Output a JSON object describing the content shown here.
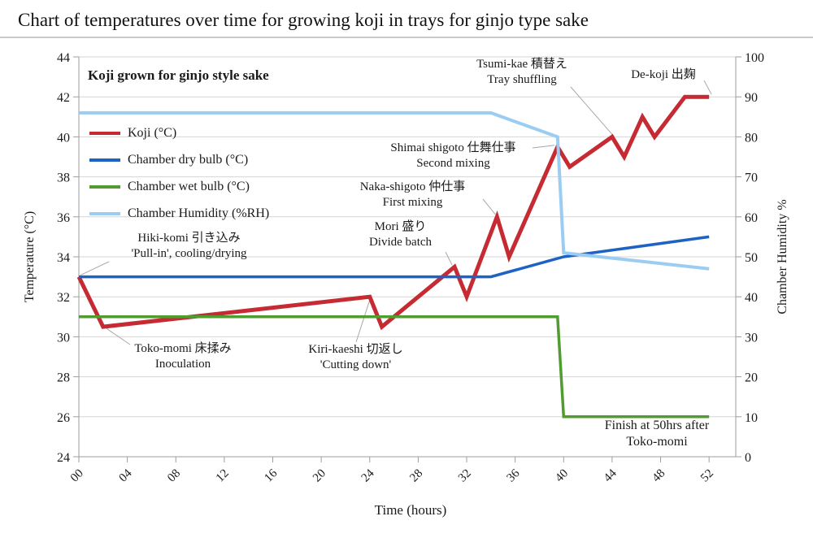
{
  "page": {
    "title": "Chart of temperatures over time for growing koji in trays for ginjo type sake"
  },
  "chart_data": {
    "type": "line",
    "title": "Koji grown for ginjo style sake",
    "xlabel": "Time (hours)",
    "ylabel_left": "Temperature (°C)",
    "ylabel_right": "Chamber Humidity %",
    "grid": "horizontal",
    "legend_position": "inside-top-left",
    "x_axis": {
      "min": 0,
      "max": 54.2,
      "tick_step": 4,
      "last_tick": 52,
      "tick_labels": [
        "00",
        "04",
        "08",
        "12",
        "16",
        "20",
        "24",
        "28",
        "32",
        "36",
        "40",
        "44",
        "48",
        "52"
      ]
    },
    "y_axis_left": {
      "min": 24,
      "max": 44,
      "tick_step": 2
    },
    "y_axis_right": {
      "min": 0,
      "max": 100,
      "tick_step": 10
    },
    "series": [
      {
        "name": "Koji (°C)",
        "axis": "left",
        "color": "#c62a32",
        "points": [
          [
            0,
            33
          ],
          [
            2,
            30.5
          ],
          [
            24,
            32
          ],
          [
            25,
            30.5
          ],
          [
            31,
            33.5
          ],
          [
            32,
            32
          ],
          [
            34.5,
            36
          ],
          [
            35.5,
            34
          ],
          [
            39.5,
            39.5
          ],
          [
            40.5,
            38.5
          ],
          [
            44,
            40
          ],
          [
            45,
            39
          ],
          [
            46.5,
            41
          ],
          [
            47.5,
            40
          ],
          [
            50,
            42
          ],
          [
            52,
            42
          ]
        ]
      },
      {
        "name": "Chamber dry bulb (°C)",
        "axis": "left",
        "color": "#1e63c4",
        "points": [
          [
            0,
            33
          ],
          [
            34,
            33
          ],
          [
            40,
            34
          ],
          [
            52,
            35
          ]
        ]
      },
      {
        "name": "Chamber wet bulb (°C)",
        "axis": "left",
        "color": "#519c30",
        "points": [
          [
            0,
            31
          ],
          [
            39.5,
            31
          ],
          [
            40,
            26
          ],
          [
            52,
            26
          ]
        ]
      },
      {
        "name": "Chamber Humidity (%RH)",
        "axis": "right",
        "color": "#9bcdf2",
        "points": [
          [
            0,
            86
          ],
          [
            34,
            86
          ],
          [
            39.5,
            80
          ],
          [
            40,
            51
          ],
          [
            52,
            47
          ]
        ]
      }
    ],
    "annotations": [
      {
        "id": "hiki_komi",
        "line1": "Hiki-komi  引き込み",
        "line2": "'Pull-in', cooling/drying",
        "points_to": {
          "hour": 0,
          "value": 33
        }
      },
      {
        "id": "toko_momi",
        "line1": "Toko-momi  床揉み",
        "line2": "Inoculation",
        "points_to": {
          "hour": 2,
          "value": 30.5
        }
      },
      {
        "id": "kiri_kaeshi",
        "line1": "Kiri-kaeshi 切返し",
        "line2": "'Cutting down'",
        "points_to": {
          "hour": 24,
          "value": 32
        }
      },
      {
        "id": "mori",
        "line1": "Mori  盛り",
        "line2": "Divide batch",
        "points_to": {
          "hour": 31,
          "value": 33.5
        }
      },
      {
        "id": "naka_shigoto",
        "line1": "Naka-shigoto  仲仕事",
        "line2": "First mixing",
        "points_to": {
          "hour": 34.5,
          "value": 36
        }
      },
      {
        "id": "shimai_shigoto",
        "line1": "Shimai shigoto  仕舞仕事",
        "line2": "Second mixing",
        "points_to": {
          "hour": 39.5,
          "value": 39.5
        }
      },
      {
        "id": "tsumi_kae",
        "line1": "Tsumi-kae  積替え",
        "line2": "Tray shuffling",
        "points_to": {
          "hour": 44,
          "value": 40
        }
      },
      {
        "id": "de_koji",
        "line1": "De-koji  出麹",
        "points_to": {
          "hour": 52,
          "value": 42
        }
      },
      {
        "id": "finish",
        "line1": "Finish at 50hrs after",
        "line2": "Toko-momi",
        "points_to": null
      }
    ],
    "colors": {
      "grid": "#d6d6d6",
      "axis": "#9d9d9d",
      "leader": "#a8a8a8",
      "title_rule": "#c9c9c9",
      "text": "#1a1a1a"
    }
  }
}
